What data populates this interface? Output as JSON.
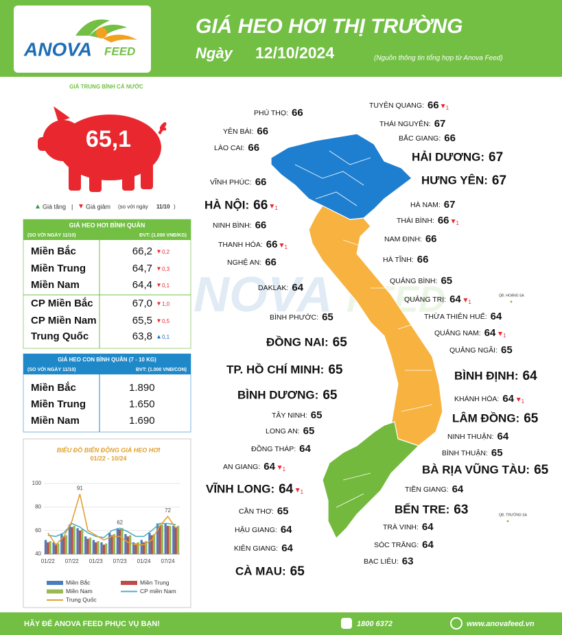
{
  "header": {
    "logo_main": "ANOVA",
    "logo_sub": "FEED",
    "title": "GIÁ HEO HƠI THỊ TRƯỜNG",
    "date_label": "Ngày",
    "date": "12/10/2024",
    "source": "(Nguồn thông tin tổng hợp từ Anova Feed)"
  },
  "national": {
    "label": "GIÁ TRUNG BÌNH CẢ NƯỚC",
    "value": "65,1",
    "legend_up": "Giá tăng",
    "legend_sep": "|",
    "legend_down": "Giá giảm",
    "compare_text": "(so với ngày",
    "compare_date": "11/10",
    "compare_close": ")"
  },
  "hog_table": {
    "title": "GIÁ HEO HƠI BÌNH QUÂN",
    "compare": "(SO VỚI NGÀY 11/10)",
    "unit": "ĐVT: (1.000 VNĐ/KG)",
    "rows": [
      {
        "name": "Miền Bắc",
        "price": "66,2",
        "change": "0,2",
        "direction": "down"
      },
      {
        "name": "Miền Trung",
        "price": "64,7",
        "change": "0,3",
        "direction": "down"
      },
      {
        "name": "Miền Nam",
        "price": "64,4",
        "change": "0,1",
        "direction": "down"
      },
      {
        "name": "CP Miền Bắc",
        "price": "67,0",
        "change": "1,0",
        "direction": "down"
      },
      {
        "name": "CP Miền Nam",
        "price": "65,5",
        "change": "0,5",
        "direction": "down"
      },
      {
        "name": "Trung Quốc",
        "price": "63,8",
        "change": "0,1",
        "direction": "up"
      }
    ]
  },
  "piglet_table": {
    "title": "GIÁ HEO CON BÌNH QUÂN (7 - 10 KG)",
    "compare": "(SO VỚI NGÀY 11/10)",
    "unit": "ĐVT: (1.000 VNĐ/CON)",
    "rows": [
      {
        "name": "Miền Bắc",
        "price": "1.890"
      },
      {
        "name": "Miền Trung",
        "price": "1.650"
      },
      {
        "name": "Miền Nam",
        "price": "1.690"
      }
    ]
  },
  "chart_data": {
    "type": "combo",
    "title": "BIỂU ĐỒ BIẾN ĐỘNG GIÁ HEO HƠI",
    "subtitle": "01/22 - 10/24",
    "categories": [
      "01/22",
      null,
      null,
      "07/22",
      null,
      null,
      "01/23",
      null,
      null,
      "07/23",
      null,
      null,
      "01/24",
      null,
      null,
      "07/24",
      null
    ],
    "ylim": [
      40,
      100
    ],
    "yticks": [
      40,
      60,
      80,
      100
    ],
    "annotations": [
      91,
      62,
      72
    ],
    "series": [
      {
        "name": "Miền Bắc",
        "kind": "bar",
        "color": "#4a7ebb",
        "values": [
          52,
          50,
          57,
          65,
          62,
          55,
          52,
          50,
          58,
          62,
          57,
          50,
          52,
          58,
          66,
          66,
          64
        ]
      },
      {
        "name": "Miền Trung",
        "kind": "bar",
        "color": "#be4b48",
        "values": [
          50,
          48,
          55,
          63,
          60,
          53,
          50,
          48,
          56,
          61,
          55,
          49,
          50,
          56,
          64,
          64,
          63
        ]
      },
      {
        "name": "Miền Nam",
        "kind": "bar",
        "color": "#98b954",
        "values": [
          51,
          49,
          56,
          64,
          61,
          54,
          51,
          49,
          57,
          62,
          56,
          50,
          51,
          57,
          65,
          64,
          64
        ]
      },
      {
        "name": "CP miền Nam",
        "kind": "line",
        "color": "#4bacc6",
        "values": [
          56,
          55,
          58,
          66,
          63,
          58,
          55,
          54,
          60,
          62,
          59,
          55,
          55,
          60,
          66,
          66,
          65
        ]
      },
      {
        "name": "Trung Quốc",
        "kind": "line",
        "color": "#e0a030",
        "values": [
          58,
          48,
          55,
          68,
          91,
          60,
          56,
          52,
          55,
          55,
          50,
          48,
          48,
          52,
          64,
          72,
          62
        ]
      }
    ]
  },
  "map": {
    "provinces": [
      {
        "name": "PHÚ THỌ:",
        "price": 66
      },
      {
        "name": "YÊN BÁI:",
        "price": 66
      },
      {
        "name": "LÀO CAI:",
        "price": 66
      },
      {
        "name": "VĨNH PHÚC:",
        "price": 66
      },
      {
        "name": "HÀ NỘI:",
        "price": 66,
        "change": 1,
        "direction": "down"
      },
      {
        "name": "NINH BÌNH:",
        "price": 66
      },
      {
        "name": "THANH HÓA:",
        "price": 66,
        "change": 1,
        "direction": "down"
      },
      {
        "name": "NGHỆ AN:",
        "price": 66
      },
      {
        "name": "DAKLAK:",
        "price": 64
      },
      {
        "name": "BÌNH PHƯỚC:",
        "price": 65
      },
      {
        "name": "ĐỒNG NAI:",
        "price": 65
      },
      {
        "name": "TP. HỒ CHÍ MINH:",
        "price": 65
      },
      {
        "name": "BÌNH DƯƠNG:",
        "price": 65
      },
      {
        "name": "TÂY NINH:",
        "price": 65
      },
      {
        "name": "LONG AN:",
        "price": 65
      },
      {
        "name": "ĐỒNG THÁP:",
        "price": 64
      },
      {
        "name": "AN GIANG:",
        "price": 64,
        "change": 1,
        "direction": "down"
      },
      {
        "name": "VĨNH LONG:",
        "price": 64,
        "change": 1,
        "direction": "down"
      },
      {
        "name": "CẦN THƠ:",
        "price": 65
      },
      {
        "name": "HẬU GIANG:",
        "price": 64
      },
      {
        "name": "KIÊN GIANG:",
        "price": 64
      },
      {
        "name": "CÀ MAU:",
        "price": 65
      },
      {
        "name": "TUYÊN QUANG:",
        "price": 66,
        "change": 1,
        "direction": "down"
      },
      {
        "name": "THÁI NGUYÊN:",
        "price": 67
      },
      {
        "name": "BẮC GIANG:",
        "price": 66
      },
      {
        "name": "HẢI DƯƠNG:",
        "price": 67
      },
      {
        "name": "HƯNG YÊN:",
        "price": 67
      },
      {
        "name": "HÀ NAM:",
        "price": 67
      },
      {
        "name": "THÁI BÌNH:",
        "price": 66,
        "change": 1,
        "direction": "down"
      },
      {
        "name": "NAM ĐỊNH:",
        "price": 66
      },
      {
        "name": "HÀ TĨNH:",
        "price": 66
      },
      {
        "name": "QUẢNG BÌNH:",
        "price": 65
      },
      {
        "name": "QUẢNG TRỊ:",
        "price": 64,
        "change": 1,
        "direction": "down"
      },
      {
        "name": "THỪA THIÊN HUẾ:",
        "price": 64
      },
      {
        "name": "QUẢNG NAM:",
        "price": 64,
        "change": 1,
        "direction": "down"
      },
      {
        "name": "QUẢNG NGÃI:",
        "price": 65
      },
      {
        "name": "BÌNH ĐỊNH:",
        "price": 64
      },
      {
        "name": "KHÁNH HÒA:",
        "price": 64,
        "change": 1,
        "direction": "down"
      },
      {
        "name": "LÂM ĐỒNG:",
        "price": 65
      },
      {
        "name": "NINH THUẬN:",
        "price": 64
      },
      {
        "name": "BÌNH THUẬN:",
        "price": 65
      },
      {
        "name": "BÀ RỊA VŨNG TÀU:",
        "price": 65
      },
      {
        "name": "TIỀN GIANG:",
        "price": 64
      },
      {
        "name": "BẾN TRE:",
        "price": 63
      },
      {
        "name": "TRÀ VINH:",
        "price": 64
      },
      {
        "name": "SÓC TRĂNG:",
        "price": 64
      },
      {
        "name": "BẠC LIÊU:",
        "price": 63
      }
    ],
    "islands": [
      "QĐ. HOÀNG SA",
      "QĐ. TRƯỜNG SA"
    ]
  },
  "footer": {
    "slogan": "HÃY ĐỂ ANOVA FEED PHỤC VỤ BẠN!",
    "phone": "1800 6372",
    "website": "www.anovafeed.vn"
  }
}
